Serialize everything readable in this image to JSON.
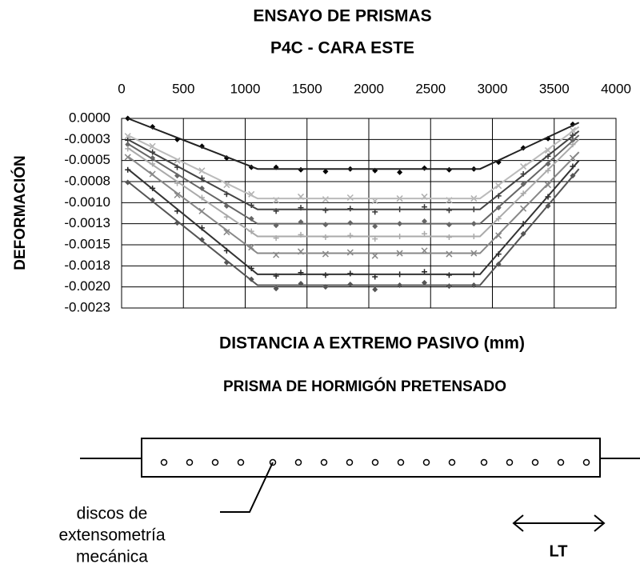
{
  "chart_data": {
    "type": "scatter",
    "title": [
      "ENSAYO DE PRISMAS",
      "P4C - CARA ESTE"
    ],
    "xlabel": "DISTANCIA A EXTREMO PASIVO (mm)",
    "ylabel": "DEFORMACIÓN",
    "xlim": [
      0,
      4000
    ],
    "xticks": [
      0,
      500,
      1000,
      1500,
      2000,
      2500,
      3000,
      3500,
      4000
    ],
    "ylim": [
      -0.00225,
      0
    ],
    "yticks": [
      {
        "value": 0,
        "label": "0.0000"
      },
      {
        "value": -0.00025,
        "label": "-0.0003"
      },
      {
        "value": -0.0005,
        "label": "-0.0005"
      },
      {
        "value": -0.00075,
        "label": "-0.0008"
      },
      {
        "value": -0.001,
        "label": "-0.0010"
      },
      {
        "value": -0.00125,
        "label": "-0.0013"
      },
      {
        "value": -0.0015,
        "label": "-0.0015"
      },
      {
        "value": -0.00175,
        "label": "-0.0018"
      },
      {
        "value": -0.002,
        "label": "-0.0020"
      },
      {
        "value": -0.00225,
        "label": "-0.0023"
      }
    ],
    "grid": true,
    "x": [
      50,
      250,
      450,
      650,
      850,
      1050,
      1250,
      1450,
      1650,
      1850,
      2050,
      2250,
      2450,
      2650,
      2850,
      3050,
      3250,
      3450,
      3650
    ],
    "trend_x": [
      50,
      1100,
      2900,
      3700
    ],
    "series": [
      {
        "color": "#000000",
        "marker": "diamond",
        "line_color": "#222222",
        "values": [
          0.0,
          -0.0001,
          -0.00025,
          -0.00033,
          -0.00047,
          -0.00058,
          -0.00058,
          -0.00061,
          -0.00063,
          -0.0006,
          -0.00062,
          -0.00064,
          -0.00059,
          -0.00061,
          -0.0006,
          -0.00052,
          -0.00035,
          -0.00024,
          -7e-05
        ],
        "trend": [
          0.0,
          -0.0006,
          -0.0006,
          -5e-05
        ]
      },
      {
        "color": "#b0b0b0",
        "marker": "x",
        "line_color": "#bbbbbb",
        "values": [
          -0.00021,
          -0.00033,
          -0.0005,
          -0.00062,
          -0.00079,
          -0.0009,
          -0.00097,
          -0.00093,
          -0.00096,
          -0.00094,
          -0.00098,
          -0.00095,
          -0.00093,
          -0.00097,
          -0.00095,
          -0.0008,
          -0.00057,
          -0.00038,
          -0.00014
        ],
        "trend": [
          -0.0002,
          -0.00095,
          -0.00095,
          -0.0001
        ]
      },
      {
        "color": "#333333",
        "marker": "plus",
        "line_color": "#444444",
        "values": [
          -0.00026,
          -0.0004,
          -0.00058,
          -0.00071,
          -0.0009,
          -0.00103,
          -0.0011,
          -0.00106,
          -0.00109,
          -0.00107,
          -0.00111,
          -0.00108,
          -0.00105,
          -0.00109,
          -0.00108,
          -0.00092,
          -0.00066,
          -0.00045,
          -0.0002
        ],
        "trend": [
          -0.00025,
          -0.00108,
          -0.00108,
          -0.00015
        ]
      },
      {
        "color": "#666666",
        "marker": "diamond",
        "line_color": "#666666",
        "values": [
          -0.00031,
          -0.00047,
          -0.00068,
          -0.00083,
          -0.00104,
          -0.00119,
          -0.00127,
          -0.00123,
          -0.00126,
          -0.00124,
          -0.00128,
          -0.00125,
          -0.00122,
          -0.00126,
          -0.00125,
          -0.00106,
          -0.00078,
          -0.00054,
          -0.00026
        ],
        "trend": [
          -0.0003,
          -0.00125,
          -0.00125,
          -0.0002
        ]
      },
      {
        "color": "#aaaaaa",
        "marker": "plus",
        "line_color": "#aaaaaa",
        "values": [
          -0.00036,
          -0.00054,
          -0.00077,
          -0.00094,
          -0.00117,
          -0.00134,
          -0.00142,
          -0.00138,
          -0.00141,
          -0.00139,
          -0.00143,
          -0.0014,
          -0.00137,
          -0.00141,
          -0.0014,
          -0.00119,
          -0.00089,
          -0.00062,
          -0.00031
        ],
        "trend": [
          -0.00035,
          -0.0014,
          -0.0014,
          -0.00025
        ]
      },
      {
        "color": "#888888",
        "marker": "x",
        "line_color": "#888888",
        "values": [
          -0.00046,
          -0.00066,
          -0.00091,
          -0.0011,
          -0.00135,
          -0.00153,
          -0.00162,
          -0.00158,
          -0.00161,
          -0.00159,
          -0.00163,
          -0.0016,
          -0.00157,
          -0.00161,
          -0.0016,
          -0.00139,
          -0.00107,
          -0.00079,
          -0.00047
        ],
        "trend": [
          -0.00045,
          -0.0016,
          -0.0016,
          -0.0004
        ]
      },
      {
        "color": "#222222",
        "marker": "plus",
        "line_color": "#333333",
        "values": [
          -0.00061,
          -0.00083,
          -0.0011,
          -0.0013,
          -0.00157,
          -0.00178,
          -0.00187,
          -0.00183,
          -0.00186,
          -0.00184,
          -0.00188,
          -0.00185,
          -0.00182,
          -0.00186,
          -0.00185,
          -0.00161,
          -0.00125,
          -0.00093,
          -0.00057
        ],
        "trend": [
          -0.0006,
          -0.00185,
          -0.00185,
          -0.0005
        ]
      },
      {
        "color": "#555555",
        "marker": "diamond",
        "line_color": "#555555",
        "values": [
          -0.00076,
          -0.00097,
          -0.00124,
          -0.00144,
          -0.00171,
          -0.00191,
          -0.00202,
          -0.00196,
          -0.002,
          -0.00197,
          -0.00203,
          -0.00198,
          -0.00195,
          -0.00199,
          -0.00198,
          -0.00173,
          -0.00137,
          -0.00104,
          -0.00068
        ],
        "trend": [
          -0.00075,
          -0.00198,
          -0.00198,
          -0.0006
        ]
      }
    ]
  },
  "diagram": {
    "title": "PRISMA DE HORMIGÓN PRETENSADO",
    "label": [
      "discos de",
      "extensometría",
      "mecánica"
    ],
    "lt": "LT"
  }
}
